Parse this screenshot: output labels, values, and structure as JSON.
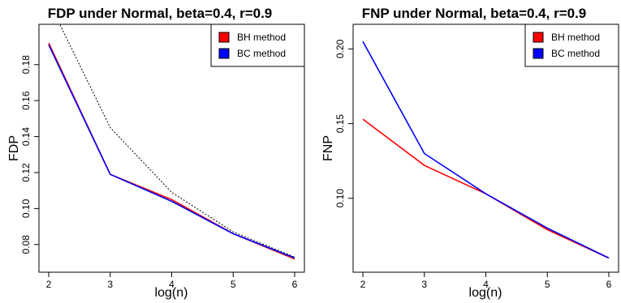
{
  "chart_data": [
    {
      "type": "line",
      "title": "FDP under Normal, beta=0.4, r=0.9",
      "xlabel": "log(n)",
      "ylabel": "FDP",
      "x": [
        2,
        3,
        4,
        5,
        6
      ],
      "xticks": [
        "2",
        "3",
        "4",
        "5",
        "6"
      ],
      "yticks": [
        "0.08",
        "0.10",
        "0.12",
        "0.14",
        "0.16",
        "0.18"
      ],
      "xlim": [
        2,
        6
      ],
      "ylim": [
        0.07,
        0.197
      ],
      "series": [
        {
          "name": "BH method",
          "values": [
            0.192,
            0.119,
            0.105,
            0.086,
            0.072
          ],
          "color": "#ff0000",
          "style": "solid"
        },
        {
          "name": "BC method",
          "values": [
            0.191,
            0.119,
            0.104,
            0.086,
            0.0725
          ],
          "color": "#0000ff",
          "style": "solid"
        },
        {
          "values": [
            0.215,
            0.145,
            0.109,
            0.087,
            0.073
          ],
          "color": "#000000",
          "style": "dotted"
        }
      ],
      "legend": {
        "position": "top-right"
      }
    },
    {
      "type": "line",
      "title": "FNP under Normal, beta=0.4, r=0.9",
      "xlabel": "log(n)",
      "ylabel": "FNP",
      "x": [
        2,
        3,
        4,
        5,
        6
      ],
      "xticks": [
        "2",
        "3",
        "4",
        "5",
        "6"
      ],
      "yticks": [
        "0.10",
        "0.15",
        "0.20"
      ],
      "xlim": [
        2,
        6
      ],
      "ylim": [
        0.057,
        0.21
      ],
      "series": [
        {
          "name": "BH method",
          "values": [
            0.153,
            0.122,
            0.103,
            0.079,
            0.06
          ],
          "color": "#ff0000",
          "style": "solid"
        },
        {
          "name": "BC method",
          "values": [
            0.205,
            0.13,
            0.103,
            0.08,
            0.06
          ],
          "color": "#0000ff",
          "style": "solid"
        }
      ],
      "legend": {
        "position": "top-right"
      }
    }
  ]
}
